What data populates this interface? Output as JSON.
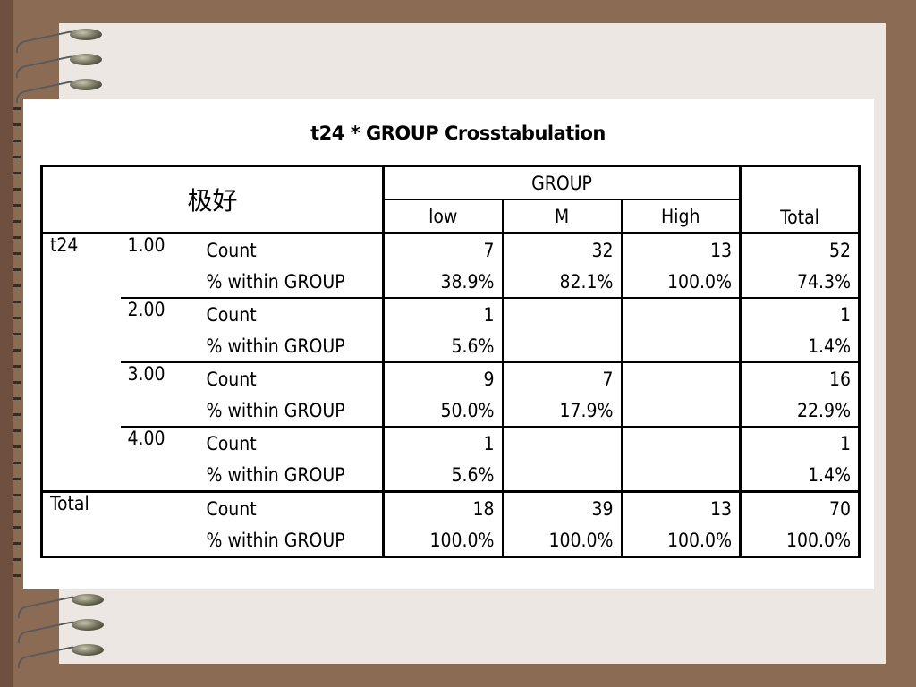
{
  "table": {
    "title": "t24 * GROUP Crosstabulation",
    "corner_label": "极好",
    "group_header": "GROUP",
    "columns": [
      "low",
      "M",
      "High"
    ],
    "total_col": "Total",
    "row_var": "t24",
    "rows": [
      {
        "value": "1.00",
        "count": [
          "7",
          "32",
          "13"
        ],
        "count_total": "52",
        "pct": [
          "38.9%",
          "82.1%",
          "100.0%"
        ],
        "pct_total": "74.3%"
      },
      {
        "value": "2.00",
        "count": [
          "1",
          "",
          ""
        ],
        "count_total": "1",
        "pct": [
          "5.6%",
          "",
          ""
        ],
        "pct_total": "1.4%"
      },
      {
        "value": "3.00",
        "count": [
          "9",
          "7",
          ""
        ],
        "count_total": "16",
        "pct": [
          "50.0%",
          "17.9%",
          ""
        ],
        "pct_total": "22.9%"
      },
      {
        "value": "4.00",
        "count": [
          "1",
          "",
          ""
        ],
        "count_total": "1",
        "pct": [
          "5.6%",
          "",
          ""
        ],
        "pct_total": "1.4%"
      }
    ],
    "total_row": {
      "label": "Total",
      "count": [
        "18",
        "39",
        "13"
      ],
      "count_total": "70",
      "pct": [
        "100.0%",
        "100.0%",
        "100.0%"
      ],
      "pct_total": "100.0%"
    },
    "count_label": "Count",
    "pct_label": "% within GROUP"
  }
}
